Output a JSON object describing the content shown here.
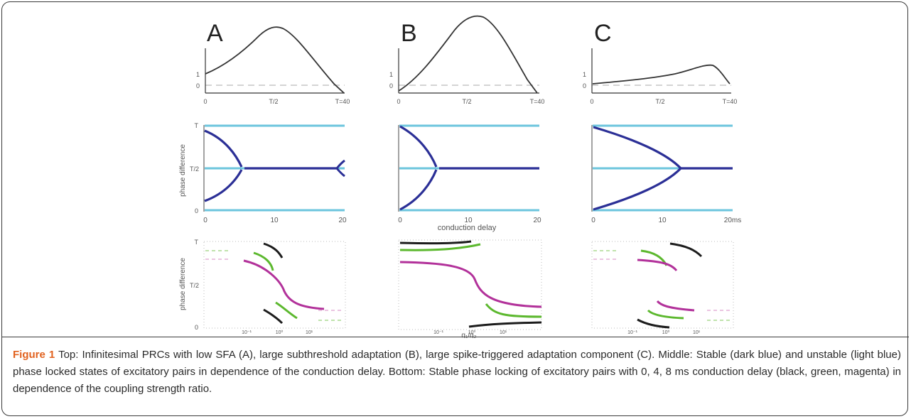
{
  "figure": {
    "panels": [
      {
        "letter": "A",
        "top_y_ticks": [
          "1",
          "0"
        ],
        "top_x_ticks": [
          "0",
          "T/2",
          "T=40"
        ],
        "mid_x_ticks": [
          "0",
          "10",
          "20"
        ],
        "mid_y_ticks": [
          "T",
          "T/2",
          "0"
        ],
        "bottom_y_ticks": [
          "T",
          "T/2",
          "0"
        ],
        "bottom_x_ticks": [
          "10⁻¹",
          "10⁰",
          "10¹"
        ]
      },
      {
        "letter": "B",
        "top_y_ticks": [
          "1",
          "0"
        ],
        "top_x_ticks": [
          "0",
          "T/2",
          "T=40"
        ],
        "mid_x_ticks": [
          "0",
          "10",
          "20"
        ],
        "mid_x_label": "conduction delay",
        "bottom_x_ticks": [
          "10⁻¹",
          "10⁰",
          "10¹"
        ],
        "bottom_x_label": "g₁/g₂"
      },
      {
        "letter": "C",
        "top_y_ticks": [
          "1",
          "0"
        ],
        "top_x_ticks": [
          "0",
          "T/2",
          "T=40"
        ],
        "mid_x_ticks": [
          "0",
          "10",
          "20ms"
        ],
        "bottom_x_ticks": [
          "10⁻¹",
          "10⁰",
          "10¹"
        ]
      }
    ],
    "y_axis_label": "phase difference"
  },
  "caption": {
    "label": "Figure 1",
    "text": " Top: Infinitesimal PRCs with low SFA (A), large subthreshold adaptation (B), large spike-triggered adaptation component (C). Middle: Stable (dark blue) and unstable (light blue) phase locked states of excitatory pairs in dependence of the conduction delay. Bottom: Stable phase locking of excitatory pairs with 0, 4, 8 ms conduction delay (black, green, magenta) in dependence of the coupling strength ratio."
  },
  "colors": {
    "stable": "#2b2f96",
    "unstable": "#6cc5dd",
    "delay_0ms": "#1c1c1c",
    "delay_4ms": "#5cb82e",
    "delay_8ms": "#b2319a",
    "caption_label": "#e1621f"
  }
}
